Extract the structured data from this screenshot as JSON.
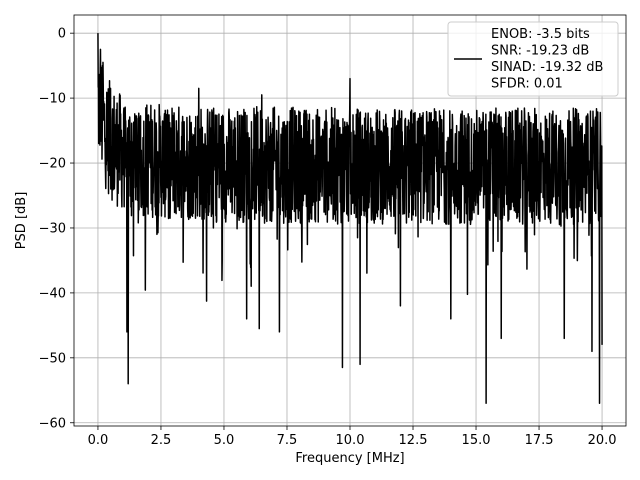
{
  "chart_data": {
    "type": "line",
    "xlabel": "Frequency [MHz]",
    "ylabel": "PSD [dB]",
    "xlim": [
      -0.95,
      20.95
    ],
    "ylim": [
      -60.5,
      2.8
    ],
    "grid": true,
    "legend_position": "top-right",
    "x_ticks": [
      0.0,
      2.5,
      5.0,
      7.5,
      10.0,
      12.5,
      15.0,
      17.5,
      20.0
    ],
    "x_tick_labels": [
      "0.0",
      "2.5",
      "5.0",
      "7.5",
      "10.0",
      "12.5",
      "15.0",
      "17.5",
      "20.0"
    ],
    "y_ticks": [
      0,
      -10,
      -20,
      -30,
      -40,
      -50,
      -60
    ],
    "y_tick_labels": [
      "0",
      "−10",
      "−20",
      "−30",
      "−40",
      "−50",
      "−60"
    ],
    "line_color": "#000000",
    "legend": {
      "lines": [
        "ENOB: -3.5 bits",
        "SNR: -19.23 dB",
        "SINAD: -19.32 dB",
        "SFDR: 0.01"
      ]
    },
    "series": [
      {
        "noise_floor_db": -20.5,
        "peaks": [
          {
            "x": 0.0,
            "y": 0.0
          },
          {
            "x": 0.1,
            "y": -2.5
          },
          {
            "x": 0.2,
            "y": -4.5
          },
          {
            "x": 10.0,
            "y": -7.0
          },
          {
            "x": 0.5,
            "y": -8.5
          },
          {
            "x": 4.0,
            "y": -8.5
          },
          {
            "x": 6.5,
            "y": -9.5
          }
        ],
        "dips": [
          {
            "x": 1.2,
            "y": -54.0
          },
          {
            "x": 1.15,
            "y": -46.0
          },
          {
            "x": 15.4,
            "y": -57.0
          },
          {
            "x": 19.9,
            "y": -57.0
          },
          {
            "x": 9.7,
            "y": -51.5
          },
          {
            "x": 10.4,
            "y": -51.0
          },
          {
            "x": 6.4,
            "y": -45.5
          },
          {
            "x": 7.2,
            "y": -46.0
          },
          {
            "x": 19.6,
            "y": -49.0
          },
          {
            "x": 20.0,
            "y": -48.0
          },
          {
            "x": 16.0,
            "y": -47.0
          },
          {
            "x": 5.9,
            "y": -44.0
          },
          {
            "x": 18.5,
            "y": -47.0
          },
          {
            "x": 12.0,
            "y": -42.0
          },
          {
            "x": 14.0,
            "y": -44.0
          }
        ]
      }
    ]
  }
}
